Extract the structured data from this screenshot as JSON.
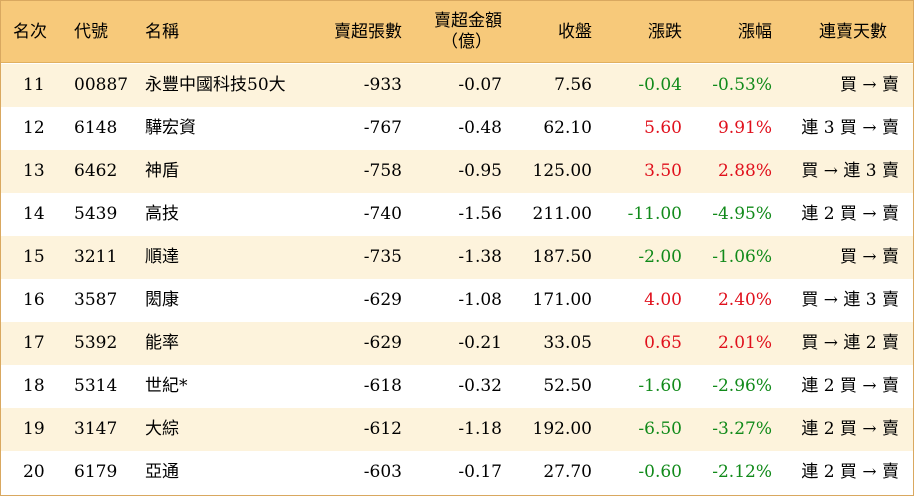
{
  "header": {
    "rank": "名次",
    "code": "代號",
    "name": "名稱",
    "net_sell_lots": "賣超張數",
    "net_sell_amount_line1": "賣超金額",
    "net_sell_amount_line2": "（億）",
    "close": "收盤",
    "change": "漲跌",
    "change_pct": "漲幅",
    "streak": "連賣天數"
  },
  "colors": {
    "header_bg": "#f7c97a",
    "odd_row_bg": "#fdf3dc",
    "up": "#e0101c",
    "down": "#118a1a"
  },
  "rows": [
    {
      "rank": "11",
      "code": "00887",
      "name": "永豐中國科技50大",
      "net": "-933",
      "amount": "-0.07",
      "close": "7.56",
      "change": "-0.04",
      "pct": "-0.53%",
      "streak": "買 → 賣",
      "dir": "down"
    },
    {
      "rank": "12",
      "code": "6148",
      "name": "驊宏資",
      "net": "-767",
      "amount": "-0.48",
      "close": "62.10",
      "change": "5.60",
      "pct": "9.91%",
      "streak": "連 3 買 → 賣",
      "dir": "up"
    },
    {
      "rank": "13",
      "code": "6462",
      "name": "神盾",
      "net": "-758",
      "amount": "-0.95",
      "close": "125.00",
      "change": "3.50",
      "pct": "2.88%",
      "streak": "買 → 連 3 賣",
      "dir": "up"
    },
    {
      "rank": "14",
      "code": "5439",
      "name": "高技",
      "net": "-740",
      "amount": "-1.56",
      "close": "211.00",
      "change": "-11.00",
      "pct": "-4.95%",
      "streak": "連 2 買 → 賣",
      "dir": "down"
    },
    {
      "rank": "15",
      "code": "3211",
      "name": "順達",
      "net": "-735",
      "amount": "-1.38",
      "close": "187.50",
      "change": "-2.00",
      "pct": "-1.06%",
      "streak": "買 → 賣",
      "dir": "down"
    },
    {
      "rank": "16",
      "code": "3587",
      "name": "閎康",
      "net": "-629",
      "amount": "-1.08",
      "close": "171.00",
      "change": "4.00",
      "pct": "2.40%",
      "streak": "買 → 連 3 賣",
      "dir": "up"
    },
    {
      "rank": "17",
      "code": "5392",
      "name": "能率",
      "net": "-629",
      "amount": "-0.21",
      "close": "33.05",
      "change": "0.65",
      "pct": "2.01%",
      "streak": "買 → 連 2 賣",
      "dir": "up"
    },
    {
      "rank": "18",
      "code": "5314",
      "name": "世紀*",
      "net": "-618",
      "amount": "-0.32",
      "close": "52.50",
      "change": "-1.60",
      "pct": "-2.96%",
      "streak": "連 2 買 → 賣",
      "dir": "down"
    },
    {
      "rank": "19",
      "code": "3147",
      "name": "大綜",
      "net": "-612",
      "amount": "-1.18",
      "close": "192.00",
      "change": "-6.50",
      "pct": "-3.27%",
      "streak": "連 2 買 → 賣",
      "dir": "down"
    },
    {
      "rank": "20",
      "code": "6179",
      "name": "亞通",
      "net": "-603",
      "amount": "-0.17",
      "close": "27.70",
      "change": "-0.60",
      "pct": "-2.12%",
      "streak": "連 2 買 → 賣",
      "dir": "down"
    }
  ]
}
